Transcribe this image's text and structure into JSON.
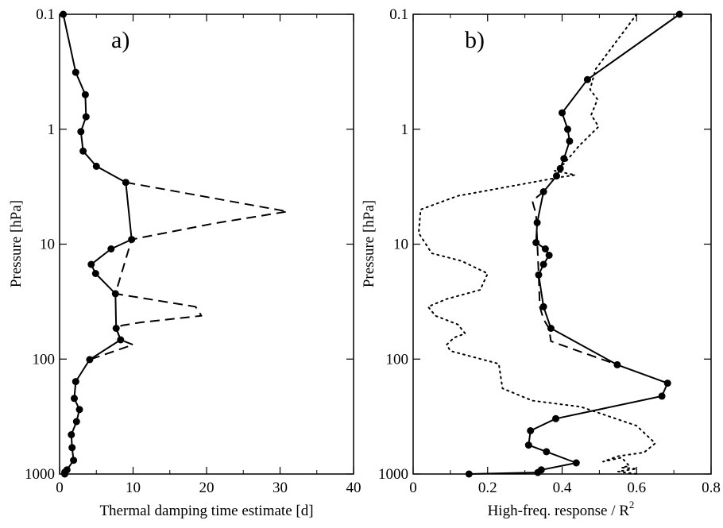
{
  "chart_data": [
    {
      "type": "line",
      "panel_label": "a)",
      "xlabel": "Thermal damping time estimate [d]",
      "ylabel": "Pressure [hPa]",
      "xlim": [
        0,
        40
      ],
      "ylim": [
        1000,
        0.1
      ],
      "yscale": "log",
      "y_inverted": true,
      "x_ticks": [
        "0",
        "10",
        "20",
        "30",
        "40"
      ],
      "y_ticks": [
        "0.1",
        "1",
        "10",
        "100",
        "1000"
      ],
      "grid": false,
      "series": [
        {
          "style": "solid-markers",
          "x": [
            0.5,
            2.2,
            3.5,
            3.6,
            2.9,
            3.2,
            5.0,
            9.0,
            9.8,
            7.0,
            4.3,
            4.9,
            7.6,
            7.7,
            8.3,
            4.1,
            2.2,
            2.0,
            2.7,
            2.3,
            1.6,
            1.7,
            1.9,
            1.0,
            0.7,
            0.7
          ],
          "y": [
            0.1,
            0.32,
            0.5,
            0.78,
            1.05,
            1.55,
            2.1,
            2.9,
            9.1,
            11.0,
            15.0,
            18.0,
            27.0,
            54.0,
            68.0,
            101.0,
            157.0,
            220.0,
            275.0,
            350.0,
            455.0,
            590.0,
            760.0,
            920.0,
            965.0,
            1000.0
          ]
        },
        {
          "style": "dashed",
          "x": [
            9.0,
            31.0,
            21.0,
            9.8,
            7.6,
            18.5,
            19.3,
            11.0,
            8.5,
            7.7,
            8.3,
            10.0,
            4.1
          ],
          "y": [
            2.9,
            5.2,
            6.6,
            9.1,
            27.0,
            35.0,
            42.0,
            48.0,
            51.0,
            54.0,
            68.0,
            75.0,
            101.0
          ]
        }
      ]
    },
    {
      "type": "line",
      "panel_label": "b)",
      "xlabel": "High-freq. response / R",
      "xlabel_superscript": "2",
      "ylabel": "Pressure [hPa]",
      "xlim": [
        0,
        0.8
      ],
      "ylim": [
        1000,
        0.1
      ],
      "yscale": "log",
      "y_inverted": true,
      "x_ticks": [
        "0",
        "0.2",
        "0.4",
        "0.6",
        "0.8"
      ],
      "y_ticks": [
        "0.1",
        "1",
        "10",
        "100",
        "1000"
      ],
      "grid": false,
      "series": [
        {
          "style": "solid-markers",
          "x": [
            0.715,
            0.468,
            0.4,
            0.415,
            0.42,
            0.405,
            0.395,
            0.385,
            0.35,
            0.333,
            0.33,
            0.355,
            0.365,
            0.35,
            0.337,
            0.35,
            0.37,
            0.548,
            0.683,
            0.668,
            0.383,
            0.315,
            0.31,
            0.358,
            0.438,
            0.344,
            0.335,
            0.15
          ],
          "y": [
            0.1,
            0.37,
            0.72,
            1.0,
            1.27,
            1.8,
            2.2,
            2.55,
            3.5,
            6.5,
            9.7,
            11.0,
            12.5,
            15.0,
            18.5,
            35.0,
            54.0,
            112.0,
            162.0,
            210.0,
            330.0,
            420.0,
            560.0,
            640.0,
            800.0,
            920.0,
            970.0,
            1000.0
          ]
        },
        {
          "style": "dashed",
          "x": [
            0.35,
            0.32,
            0.33,
            0.337,
            0.34,
            0.35,
            0.365,
            0.37,
            0.548
          ],
          "y": [
            3.5,
            4.2,
            5.5,
            18.5,
            35.0,
            45.0,
            54.0,
            70.0,
            112.0
          ]
        },
        {
          "style": "dotted",
          "x": [
            0.6,
            0.49,
            0.475,
            0.495,
            0.478,
            0.498,
            0.445,
            0.43,
            0.405,
            0.38,
            0.435,
            0.4,
            0.12,
            0.02,
            0.015,
            0.05,
            0.13,
            0.2,
            0.18,
            0.09,
            0.04,
            0.06,
            0.12,
            0.14,
            0.11,
            0.09,
            0.1,
            0.23,
            0.24,
            0.32,
            0.45,
            0.6,
            0.65,
            0.62,
            0.55,
            0.51,
            0.56,
            0.58,
            0.56,
            0.6,
            0.55,
            0.6
          ],
          "y": [
            0.1,
            0.3,
            0.45,
            0.55,
            0.75,
            0.95,
            1.4,
            1.6,
            2.0,
            2.3,
            2.5,
            2.6,
            3.8,
            5.0,
            8.0,
            12.0,
            14.0,
            18.0,
            25.0,
            30.0,
            35.0,
            42.0,
            50.0,
            60.0,
            65.0,
            75.0,
            85.0,
            110.0,
            180.0,
            230.0,
            260.0,
            380.0,
            540.0,
            650.0,
            700.0,
            780.0,
            720.0,
            850.0,
            880.0,
            900.0,
            950.0,
            1000.0
          ]
        }
      ]
    }
  ]
}
